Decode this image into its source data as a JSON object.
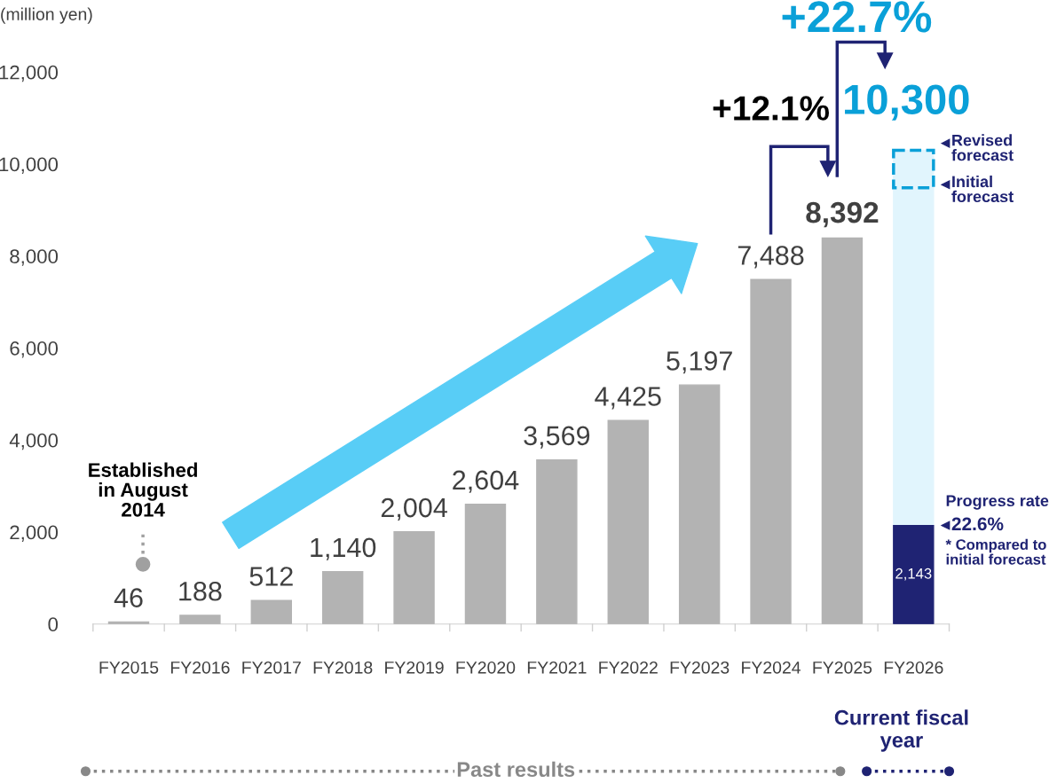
{
  "chart_data": {
    "type": "bar",
    "ylabel": "(million yen)",
    "categories": [
      "FY2015",
      "FY2016",
      "FY2017",
      "FY2018",
      "FY2019",
      "FY2020",
      "FY2021",
      "FY2022",
      "FY2023",
      "FY2024",
      "FY2025",
      "FY2026"
    ],
    "stacked": true,
    "series": [
      {
        "color": "#b3b3b3",
        "colors": [
          "#b3b3b3",
          "#b3b3b3",
          "#b3b3b3",
          "#b3b3b3",
          "#b3b3b3",
          "#b3b3b3",
          "#b3b3b3",
          "#b3b3b3",
          "#b3b3b3",
          "#b3b3b3",
          "#b3b3b3",
          "#1f2373"
        ],
        "values": [
          46,
          188,
          512,
          1140,
          2004,
          2604,
          3569,
          4425,
          5197,
          7488,
          8392,
          2143
        ],
        "value_labels": [
          "46",
          "188",
          "512",
          "1,140",
          "2,004",
          "2,604",
          "3,569",
          "4,425",
          "5,197",
          "7,488",
          "8,392",
          "2,143"
        ]
      },
      {
        "color": "#e1f5fd",
        "values": [
          null,
          null,
          null,
          null,
          null,
          null,
          null,
          null,
          null,
          null,
          null,
          8157
        ]
      }
    ],
    "totals": [
      null,
      null,
      null,
      null,
      null,
      null,
      null,
      null,
      null,
      null,
      null,
      "10,300"
    ],
    "ylim": [
      0,
      12000
    ],
    "yticks": [
      {
        "value": 0,
        "label": "0"
      },
      {
        "value": 2000,
        "label": "2,000"
      },
      {
        "value": 4000,
        "label": "4,000"
      },
      {
        "value": 6000,
        "label": "6,000"
      },
      {
        "value": 8000,
        "label": "8,000"
      },
      {
        "value": 10000,
        "label": "10,000"
      },
      {
        "value": 12000,
        "label": "12,000"
      }
    ],
    "grid": false,
    "legend": false,
    "annotations": [
      "Established\nin August\n2014",
      "+12.1%",
      "+22.7%",
      "Revised\nforecast",
      "Initial\nforecast",
      "Progress rate",
      "22.6%",
      "* Compared to\ninitial forecast",
      "Past results",
      "Current fiscal year"
    ]
  }
}
